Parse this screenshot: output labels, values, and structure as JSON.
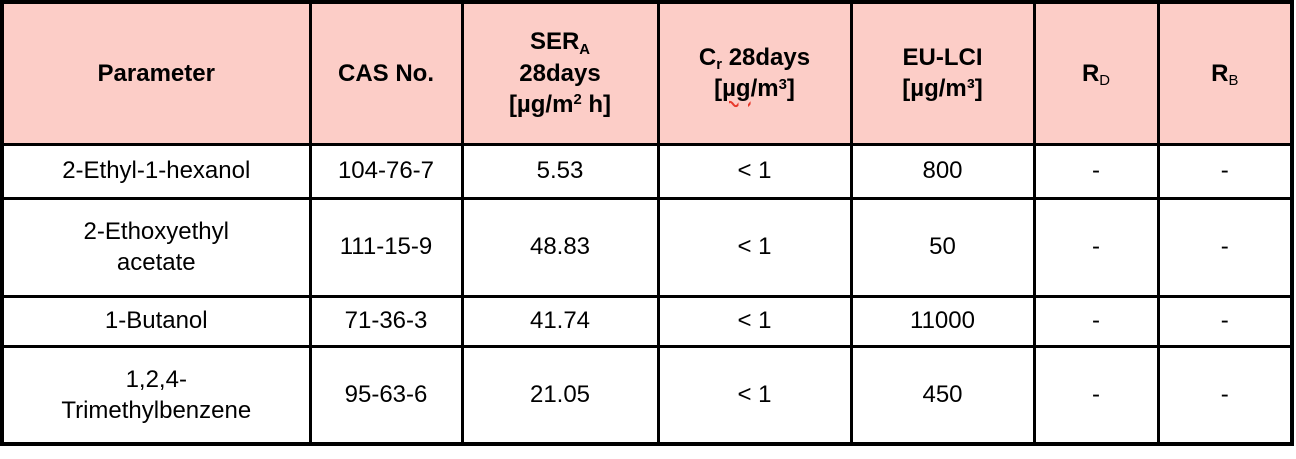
{
  "table": {
    "title": "emission-test-results",
    "colors": {
      "header_bg": "#fccdc7",
      "border": "#000000",
      "body_bg": "#ffffff",
      "spell": "#e8392b"
    },
    "columns": [
      {
        "name": "parameter",
        "label": [
          {
            "t": "Parameter"
          }
        ]
      },
      {
        "name": "cas-no",
        "label": [
          {
            "t": "CAS No."
          }
        ]
      },
      {
        "name": "ser-a-28days",
        "label": [
          {
            "t": "SER"
          },
          {
            "t": "A",
            "s": "sub"
          },
          {
            "s": "br"
          },
          {
            "t": "28days"
          },
          {
            "s": "br"
          },
          {
            "t": "[µg/m"
          },
          {
            "t": "2",
            "s": "sup"
          },
          {
            "t": " h]"
          }
        ]
      },
      {
        "name": "cr-28days",
        "label": [
          {
            "t": "C"
          },
          {
            "t": "r",
            "s": "sub"
          },
          {
            "t": " 28days"
          },
          {
            "s": "br"
          },
          {
            "t": "["
          },
          {
            "t": "µg",
            "s": "wavy"
          },
          {
            "t": "/m"
          },
          {
            "t": "3",
            "s": "sup"
          },
          {
            "t": "]"
          }
        ]
      },
      {
        "name": "eu-lci",
        "label": [
          {
            "t": "EU-LCI"
          },
          {
            "s": "br"
          },
          {
            "t": "[µg/m³]"
          }
        ]
      },
      {
        "name": "r-d",
        "label": [
          {
            "t": "R"
          },
          {
            "t": "D",
            "s": "sublight"
          }
        ]
      },
      {
        "name": "r-b",
        "label": [
          {
            "t": "R"
          },
          {
            "t": "B",
            "s": "sublight"
          }
        ]
      }
    ],
    "rows": [
      {
        "cells": [
          "2-Ethyl-1-hexanol",
          "104-76-7",
          "5.53",
          "< 1",
          "800",
          "-",
          "-"
        ]
      },
      {
        "cells": [
          "2-Ethoxyethyl\nacetate",
          "111-15-9",
          "48.83",
          "< 1",
          "50",
          "-",
          "-"
        ]
      },
      {
        "cells": [
          "1-Butanol",
          "71-36-3",
          "41.74",
          "< 1",
          "11000",
          "-",
          "-"
        ]
      },
      {
        "cells": [
          "1,2,4-\nTrimethylbenzene",
          "95-63-6",
          "21.05",
          "< 1",
          "450",
          "-",
          "-"
        ]
      }
    ]
  }
}
